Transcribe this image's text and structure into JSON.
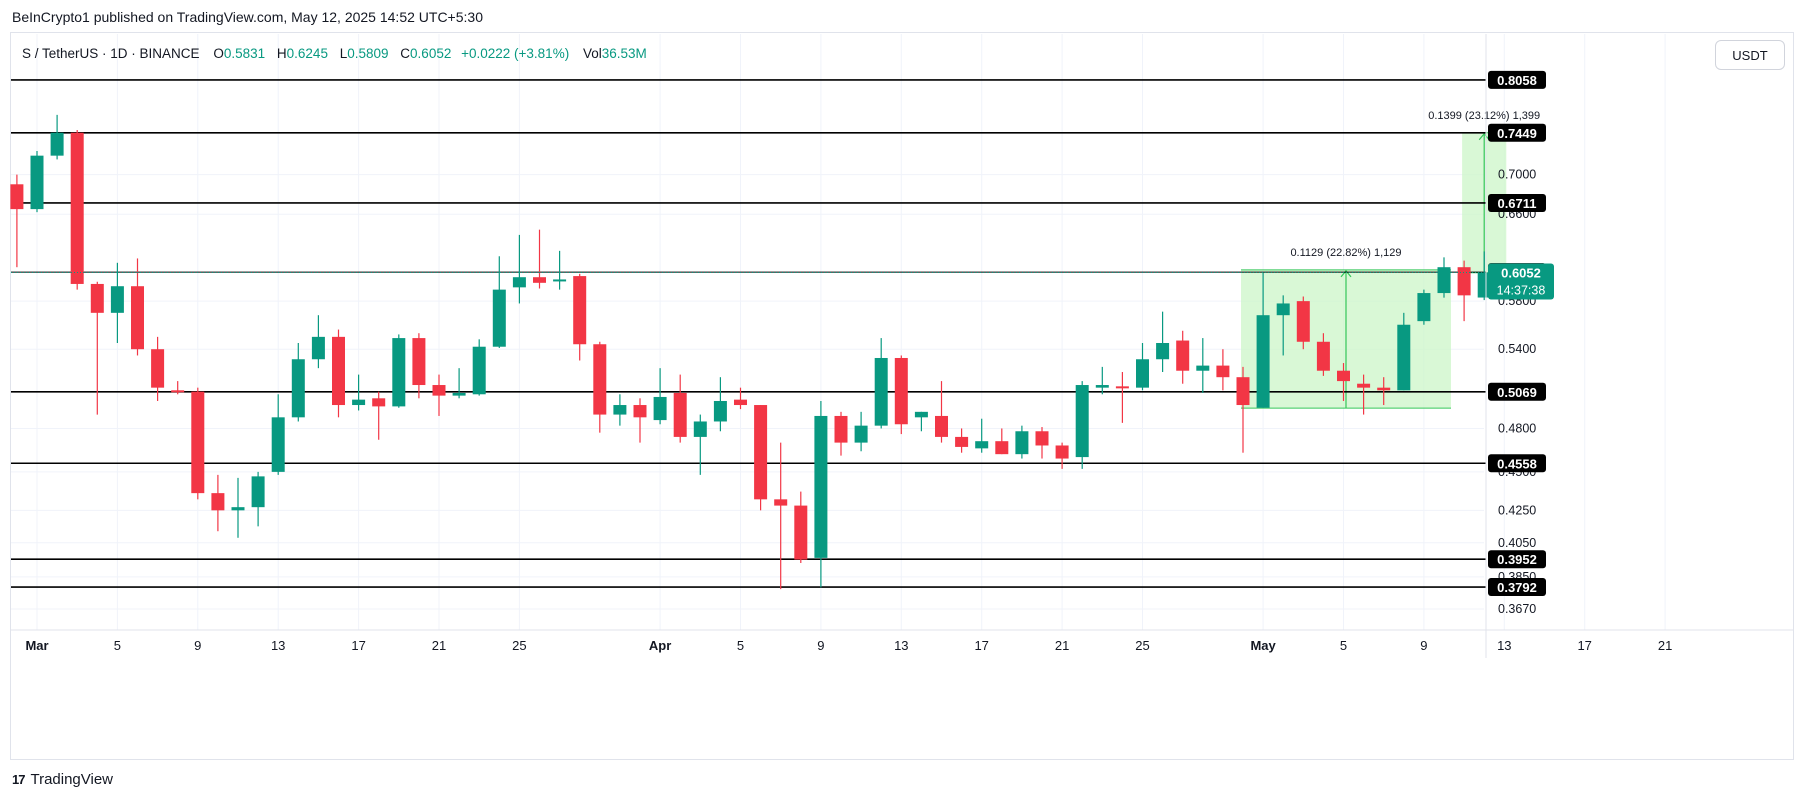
{
  "header": {
    "caption": "BeInCrypto1 published on TradingView.com, May 12, 2025 14:52 UTC+5:30"
  },
  "legend": {
    "symbol": "S / TetherUS · 1D · BINANCE",
    "o_label": "O",
    "o_value": "0.5831",
    "h_label": "H",
    "h_value": "0.6245",
    "l_label": "L",
    "l_value": "0.5809",
    "c_label": "C",
    "c_value": "0.6052",
    "change": "+0.0222 (+3.81%)",
    "vol_label": "Vol",
    "vol_value": "36.53M"
  },
  "currency_button": "USDT",
  "brand": {
    "logo": "17",
    "name": "TradingView"
  },
  "colors": {
    "up": "#089981",
    "down": "#f23645",
    "range_fill": "#ccf5c8",
    "range_stroke": "#34c759",
    "level_line": "#000000",
    "grid": "#f0f3fa"
  },
  "chart_data": {
    "type": "candlestick",
    "title": "",
    "y_axis": {
      "scale": "log",
      "ylim": [
        0.36,
        0.83
      ],
      "tick_labels": [
        {
          "value": 0.7,
          "label": "0.7000"
        },
        {
          "value": 0.66,
          "label": "0.6600"
        },
        {
          "value": 0.58,
          "label": "0.5800"
        },
        {
          "value": 0.54,
          "label": "0.5400"
        },
        {
          "value": 0.48,
          "label": "0.4800"
        },
        {
          "value": 0.45,
          "label": "0.4500"
        },
        {
          "value": 0.425,
          "label": "0.4250"
        },
        {
          "value": 0.405,
          "label": "0.4050"
        },
        {
          "value": 0.385,
          "label": "0.3850"
        },
        {
          "value": 0.367,
          "label": "0.3670"
        }
      ]
    },
    "x_axis": {
      "tick_labels": [
        {
          "day": 0,
          "label": "Mar",
          "bold": true
        },
        {
          "day": 4,
          "label": "5"
        },
        {
          "day": 8,
          "label": "9"
        },
        {
          "day": 12,
          "label": "13"
        },
        {
          "day": 16,
          "label": "17"
        },
        {
          "day": 20,
          "label": "21"
        },
        {
          "day": 24,
          "label": "25"
        },
        {
          "day": 31,
          "label": "Apr",
          "bold": true
        },
        {
          "day": 35,
          "label": "5"
        },
        {
          "day": 39,
          "label": "9"
        },
        {
          "day": 43,
          "label": "13"
        },
        {
          "day": 47,
          "label": "17"
        },
        {
          "day": 51,
          "label": "21"
        },
        {
          "day": 55,
          "label": "25"
        },
        {
          "day": 61,
          "label": "May",
          "bold": true
        },
        {
          "day": 65,
          "label": "5"
        },
        {
          "day": 69,
          "label": "9"
        },
        {
          "day": 73,
          "label": "13"
        },
        {
          "day": 77,
          "label": "17"
        },
        {
          "day": 81,
          "label": "21"
        }
      ]
    },
    "horizontal_levels": [
      {
        "value": 0.8058,
        "label": "0.8058"
      },
      {
        "value": 0.7449,
        "label": "0.7449"
      },
      {
        "value": 0.6711,
        "label": "0.6711"
      },
      {
        "value": 0.6056,
        "label": "0.6056"
      },
      {
        "value": 0.5069,
        "label": "0.5069"
      },
      {
        "value": 0.4558,
        "label": "0.4558"
      },
      {
        "value": 0.3952,
        "label": "0.3952"
      },
      {
        "value": 0.3792,
        "label": "0.3792"
      }
    ],
    "current_price": {
      "value": 0.6052,
      "label": "0.6052",
      "countdown": "14:37:38"
    },
    "measurements": [
      {
        "label": "0.1129 (22.82%) 1,129",
        "x_from": 60,
        "x_to": 70,
        "y_from": 0.4947,
        "y_to": 0.6076
      },
      {
        "label": "0.1399 (23.12%) 1,399",
        "x_from": 71,
        "x_to": 73,
        "y_from": 0.605,
        "y_to": 0.7449
      }
    ],
    "candles": [
      {
        "d": -1,
        "o": 0.69,
        "h": 0.7,
        "l": 0.61,
        "c": 0.665
      },
      {
        "d": 0,
        "o": 0.665,
        "h": 0.725,
        "l": 0.662,
        "c": 0.72
      },
      {
        "d": 1,
        "o": 0.72,
        "h": 0.765,
        "l": 0.716,
        "c": 0.745
      },
      {
        "d": 2,
        "o": 0.745,
        "h": 0.748,
        "l": 0.59,
        "c": 0.595
      },
      {
        "d": 3,
        "o": 0.595,
        "h": 0.597,
        "l": 0.49,
        "c": 0.57
      },
      {
        "d": 4,
        "o": 0.57,
        "h": 0.614,
        "l": 0.545,
        "c": 0.593
      },
      {
        "d": 5,
        "o": 0.593,
        "h": 0.618,
        "l": 0.535,
        "c": 0.54
      },
      {
        "d": 6,
        "o": 0.54,
        "h": 0.55,
        "l": 0.5,
        "c": 0.51
      },
      {
        "d": 7,
        "o": 0.508,
        "h": 0.515,
        "l": 0.505,
        "c": 0.507
      },
      {
        "d": 8,
        "o": 0.507,
        "h": 0.51,
        "l": 0.432,
        "c": 0.436
      },
      {
        "d": 9,
        "o": 0.436,
        "h": 0.448,
        "l": 0.412,
        "c": 0.425
      },
      {
        "d": 10,
        "o": 0.425,
        "h": 0.446,
        "l": 0.408,
        "c": 0.427
      },
      {
        "d": 11,
        "o": 0.427,
        "h": 0.45,
        "l": 0.415,
        "c": 0.447
      },
      {
        "d": 12,
        "o": 0.45,
        "h": 0.505,
        "l": 0.448,
        "c": 0.488
      },
      {
        "d": 13,
        "o": 0.488,
        "h": 0.545,
        "l": 0.485,
        "c": 0.532
      },
      {
        "d": 14,
        "o": 0.532,
        "h": 0.568,
        "l": 0.525,
        "c": 0.55
      },
      {
        "d": 15,
        "o": 0.55,
        "h": 0.556,
        "l": 0.488,
        "c": 0.497
      },
      {
        "d": 16,
        "o": 0.497,
        "h": 0.52,
        "l": 0.493,
        "c": 0.501
      },
      {
        "d": 17,
        "o": 0.502,
        "h": 0.507,
        "l": 0.472,
        "c": 0.496
      },
      {
        "d": 18,
        "o": 0.496,
        "h": 0.552,
        "l": 0.495,
        "c": 0.549
      },
      {
        "d": 19,
        "o": 0.549,
        "h": 0.553,
        "l": 0.502,
        "c": 0.512
      },
      {
        "d": 20,
        "o": 0.512,
        "h": 0.52,
        "l": 0.489,
        "c": 0.504
      },
      {
        "d": 21,
        "o": 0.504,
        "h": 0.525,
        "l": 0.502,
        "c": 0.506
      },
      {
        "d": 22,
        "o": 0.505,
        "h": 0.548,
        "l": 0.504,
        "c": 0.542
      },
      {
        "d": 23,
        "o": 0.542,
        "h": 0.62,
        "l": 0.541,
        "c": 0.59
      },
      {
        "d": 24,
        "o": 0.592,
        "h": 0.64,
        "l": 0.578,
        "c": 0.601
      },
      {
        "d": 25,
        "o": 0.601,
        "h": 0.645,
        "l": 0.591,
        "c": 0.596
      },
      {
        "d": 26,
        "o": 0.598,
        "h": 0.625,
        "l": 0.59,
        "c": 0.599
      },
      {
        "d": 27,
        "o": 0.602,
        "h": 0.604,
        "l": 0.531,
        "c": 0.544
      },
      {
        "d": 28,
        "o": 0.544,
        "h": 0.546,
        "l": 0.477,
        "c": 0.49
      },
      {
        "d": 29,
        "o": 0.49,
        "h": 0.505,
        "l": 0.482,
        "c": 0.497
      },
      {
        "d": 30,
        "o": 0.497,
        "h": 0.502,
        "l": 0.47,
        "c": 0.488
      },
      {
        "d": 31,
        "o": 0.486,
        "h": 0.525,
        "l": 0.483,
        "c": 0.503
      },
      {
        "d": 32,
        "o": 0.506,
        "h": 0.52,
        "l": 0.47,
        "c": 0.474
      },
      {
        "d": 33,
        "o": 0.474,
        "h": 0.49,
        "l": 0.448,
        "c": 0.485
      },
      {
        "d": 34,
        "o": 0.485,
        "h": 0.518,
        "l": 0.478,
        "c": 0.5
      },
      {
        "d": 35,
        "o": 0.501,
        "h": 0.51,
        "l": 0.494,
        "c": 0.497
      },
      {
        "d": 36,
        "o": 0.497,
        "h": 0.497,
        "l": 0.425,
        "c": 0.432
      },
      {
        "d": 37,
        "o": 0.432,
        "h": 0.47,
        "l": 0.378,
        "c": 0.428
      },
      {
        "d": 38,
        "o": 0.428,
        "h": 0.437,
        "l": 0.393,
        "c": 0.395
      },
      {
        "d": 39,
        "o": 0.396,
        "h": 0.5,
        "l": 0.379,
        "c": 0.489
      },
      {
        "d": 40,
        "o": 0.489,
        "h": 0.492,
        "l": 0.461,
        "c": 0.47
      },
      {
        "d": 41,
        "o": 0.47,
        "h": 0.492,
        "l": 0.464,
        "c": 0.482
      },
      {
        "d": 42,
        "o": 0.482,
        "h": 0.549,
        "l": 0.48,
        "c": 0.533
      },
      {
        "d": 43,
        "o": 0.533,
        "h": 0.535,
        "l": 0.476,
        "c": 0.483
      },
      {
        "d": 44,
        "o": 0.488,
        "h": 0.492,
        "l": 0.478,
        "c": 0.492
      },
      {
        "d": 45,
        "o": 0.489,
        "h": 0.515,
        "l": 0.47,
        "c": 0.474
      },
      {
        "d": 46,
        "o": 0.474,
        "h": 0.48,
        "l": 0.463,
        "c": 0.467
      },
      {
        "d": 47,
        "o": 0.466,
        "h": 0.487,
        "l": 0.463,
        "c": 0.471
      },
      {
        "d": 48,
        "o": 0.471,
        "h": 0.48,
        "l": 0.462,
        "c": 0.462
      },
      {
        "d": 49,
        "o": 0.462,
        "h": 0.482,
        "l": 0.459,
        "c": 0.478
      },
      {
        "d": 50,
        "o": 0.478,
        "h": 0.481,
        "l": 0.459,
        "c": 0.468
      },
      {
        "d": 51,
        "o": 0.468,
        "h": 0.47,
        "l": 0.452,
        "c": 0.459
      },
      {
        "d": 52,
        "o": 0.46,
        "h": 0.515,
        "l": 0.452,
        "c": 0.512
      },
      {
        "d": 53,
        "o": 0.51,
        "h": 0.526,
        "l": 0.505,
        "c": 0.512
      },
      {
        "d": 54,
        "o": 0.511,
        "h": 0.522,
        "l": 0.484,
        "c": 0.51
      },
      {
        "d": 55,
        "o": 0.51,
        "h": 0.545,
        "l": 0.508,
        "c": 0.532
      },
      {
        "d": 56,
        "o": 0.532,
        "h": 0.571,
        "l": 0.522,
        "c": 0.545
      },
      {
        "d": 57,
        "o": 0.547,
        "h": 0.555,
        "l": 0.513,
        "c": 0.523
      },
      {
        "d": 58,
        "o": 0.523,
        "h": 0.549,
        "l": 0.506,
        "c": 0.527
      },
      {
        "d": 59,
        "o": 0.527,
        "h": 0.54,
        "l": 0.508,
        "c": 0.518
      },
      {
        "d": 60,
        "o": 0.518,
        "h": 0.526,
        "l": 0.463,
        "c": 0.497
      },
      {
        "d": 61,
        "o": 0.495,
        "h": 0.605,
        "l": 0.495,
        "c": 0.568
      },
      {
        "d": 62,
        "o": 0.568,
        "h": 0.585,
        "l": 0.535,
        "c": 0.578
      },
      {
        "d": 63,
        "o": 0.58,
        "h": 0.584,
        "l": 0.54,
        "c": 0.546
      },
      {
        "d": 64,
        "o": 0.546,
        "h": 0.553,
        "l": 0.519,
        "c": 0.523
      },
      {
        "d": 65,
        "o": 0.523,
        "h": 0.529,
        "l": 0.5,
        "c": 0.515
      },
      {
        "d": 66,
        "o": 0.513,
        "h": 0.52,
        "l": 0.49,
        "c": 0.51
      },
      {
        "d": 67,
        "o": 0.51,
        "h": 0.518,
        "l": 0.497,
        "c": 0.508
      },
      {
        "d": 68,
        "o": 0.508,
        "h": 0.57,
        "l": 0.508,
        "c": 0.56
      },
      {
        "d": 69,
        "o": 0.563,
        "h": 0.59,
        "l": 0.56,
        "c": 0.587
      },
      {
        "d": 70,
        "o": 0.587,
        "h": 0.619,
        "l": 0.583,
        "c": 0.61
      },
      {
        "d": 71,
        "o": 0.61,
        "h": 0.616,
        "l": 0.563,
        "c": 0.585
      },
      {
        "d": 72,
        "o": 0.5831,
        "h": 0.6245,
        "l": 0.5809,
        "c": 0.6052
      }
    ]
  }
}
